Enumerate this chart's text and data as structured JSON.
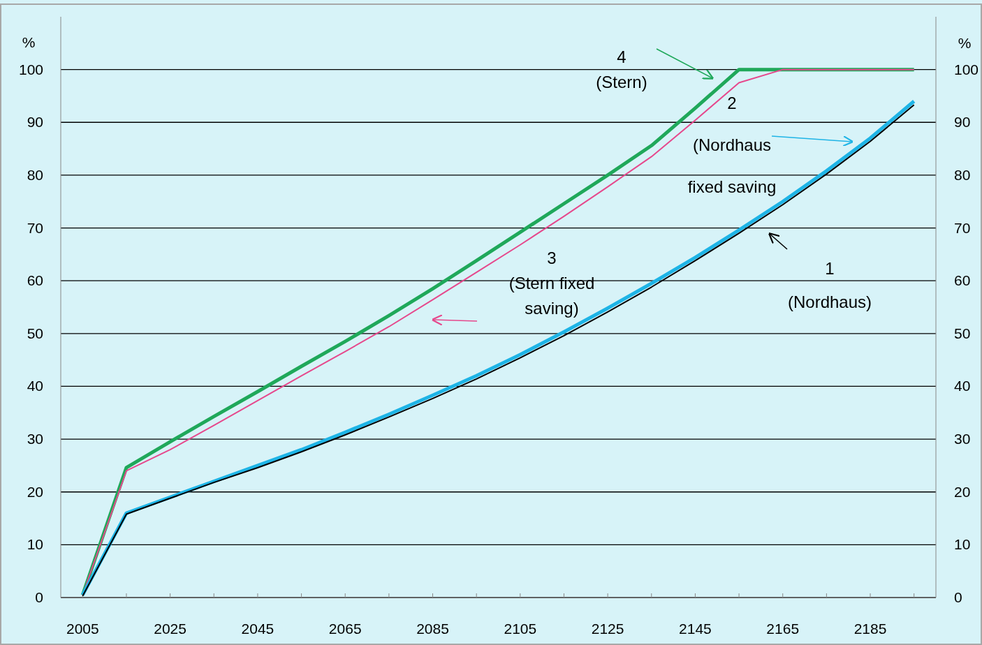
{
  "chart_data": {
    "type": "line",
    "ylabel": "%",
    "y2label": "%",
    "x": [
      2005,
      2015,
      2025,
      2035,
      2045,
      2055,
      2065,
      2075,
      2085,
      2095,
      2105,
      2115,
      2125,
      2135,
      2145,
      2155,
      2165,
      2175,
      2185,
      2195
    ],
    "series": [
      {
        "color": "#000000",
        "values": [
          0.3,
          15.8,
          18.8,
          21.8,
          24.6,
          27.6,
          30.8,
          34.2,
          37.7,
          41.4,
          45.4,
          49.6,
          54.1,
          58.8,
          63.8,
          69,
          74.4,
          80.2,
          86.4,
          93.3
        ]
      },
      {
        "color": "#1eb4e6",
        "values": [
          0.5,
          16,
          19,
          22,
          25,
          28,
          31.3,
          34.7,
          38.3,
          42,
          46,
          50.3,
          54.8,
          59.5,
          64.4,
          69.6,
          75,
          80.8,
          87,
          94
        ]
      },
      {
        "color": "#e6488c",
        "values": [
          0.5,
          24,
          28,
          32.6,
          37.3,
          42,
          46.6,
          51.3,
          56.4,
          61.6,
          66.8,
          72.2,
          77.8,
          83.5,
          90.4,
          97.5,
          100,
          100,
          100,
          100
        ]
      },
      {
        "color": "#1fa85a",
        "values": [
          0.5,
          24.6,
          29.5,
          34.3,
          39,
          43.8,
          48.5,
          53.4,
          58.5,
          63.8,
          69.2,
          74.6,
          80,
          85.6,
          92.7,
          100,
          100,
          100,
          100,
          100
        ]
      }
    ],
    "xlim": [
      2000,
      2200
    ],
    "xticks": [
      2005,
      {
        "value": 2015,
        "label": null
      },
      2025,
      {
        "value": 2035,
        "label": null
      },
      2045,
      {
        "value": 2055,
        "label": null
      },
      2065,
      {
        "value": 2075,
        "label": null
      },
      2085,
      {
        "value": 2095,
        "label": null
      },
      2105,
      {
        "value": 2115,
        "label": null
      },
      2125,
      {
        "value": 2135,
        "label": null
      },
      2145,
      {
        "value": 2155,
        "label": null
      },
      2165,
      {
        "value": 2175,
        "label": null
      },
      2185,
      {
        "value": 2195,
        "label": null
      }
    ],
    "ylim": [
      0,
      110
    ],
    "yticks": [
      0,
      10,
      20,
      30,
      40,
      50,
      60,
      70,
      80,
      90,
      100
    ],
    "y2lim": [
      0,
      110
    ],
    "y2ticks": [
      0,
      10,
      20,
      30,
      40,
      50,
      60,
      70,
      80,
      90,
      100
    ],
    "grid": "y",
    "marker": "none",
    "line_style": "solid",
    "annotations": [
      "4\n(Stern)",
      "2\n(Nordhaus\nfixed saving",
      "3\n(Stern fixed\nsaving)",
      "1\n\n(Nordhaus)"
    ]
  }
}
